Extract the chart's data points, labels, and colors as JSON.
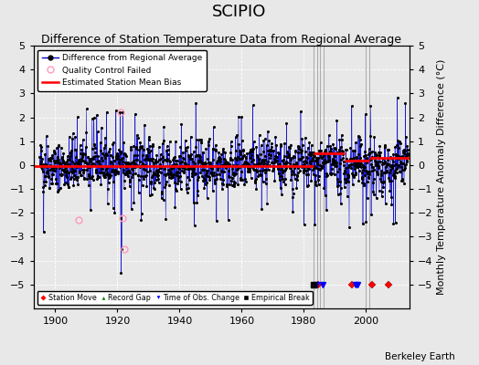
{
  "title": "SCIPIO",
  "subtitle": "Difference of Station Temperature Data from Regional Average",
  "ylabel_right": "Monthly Temperature Anomaly Difference (°C)",
  "xlim": [
    1893,
    2014
  ],
  "ylim": [
    -6,
    5
  ],
  "yticks": [
    -5,
    -4,
    -3,
    -2,
    -1,
    0,
    1,
    2,
    3,
    4,
    5
  ],
  "xticks": [
    1900,
    1920,
    1940,
    1960,
    1980,
    2000
  ],
  "background_color": "#e8e8e8",
  "plot_bg_color": "#e8e8e8",
  "line_color": "#0000cc",
  "dot_color": "#000000",
  "bias_color": "#ff0000",
  "qc_color": "#ff99bb",
  "grid_color": "#ffffff",
  "grid_style": "--",
  "title_fontsize": 13,
  "subtitle_fontsize": 9,
  "tick_fontsize": 8,
  "label_fontsize": 8,
  "watermark": "Berkeley Earth",
  "vertical_lines": [
    1983.0,
    1984.3,
    1985.3,
    1986.2,
    2000.0,
    2001.0
  ],
  "bias_segments": [
    {
      "x_start": 1893,
      "x_end": 1983,
      "bias": -0.05
    },
    {
      "x_start": 1983,
      "x_end": 1993,
      "bias": 0.5
    },
    {
      "x_start": 1993,
      "x_end": 2001,
      "bias": 0.2
    },
    {
      "x_start": 2001,
      "x_end": 2014,
      "bias": 0.3
    }
  ],
  "event_markers": {
    "station_move": [
      1984.5,
      1995.5,
      2001.8,
      2007.2
    ],
    "record_gap": [],
    "obs_change": [
      1984.0,
      1986.0,
      1996.5,
      1997.3
    ],
    "empirical_break": [
      1983.0
    ]
  },
  "qc_failed_points": [
    {
      "year": 1907.5,
      "value": -2.3
    },
    {
      "year": 1921.0,
      "value": 2.2
    },
    {
      "year": 1921.5,
      "value": -2.2
    },
    {
      "year": 1922.2,
      "value": -3.5
    }
  ],
  "seed": 42,
  "t_start": 1895.0,
  "t_end": 2013.5
}
